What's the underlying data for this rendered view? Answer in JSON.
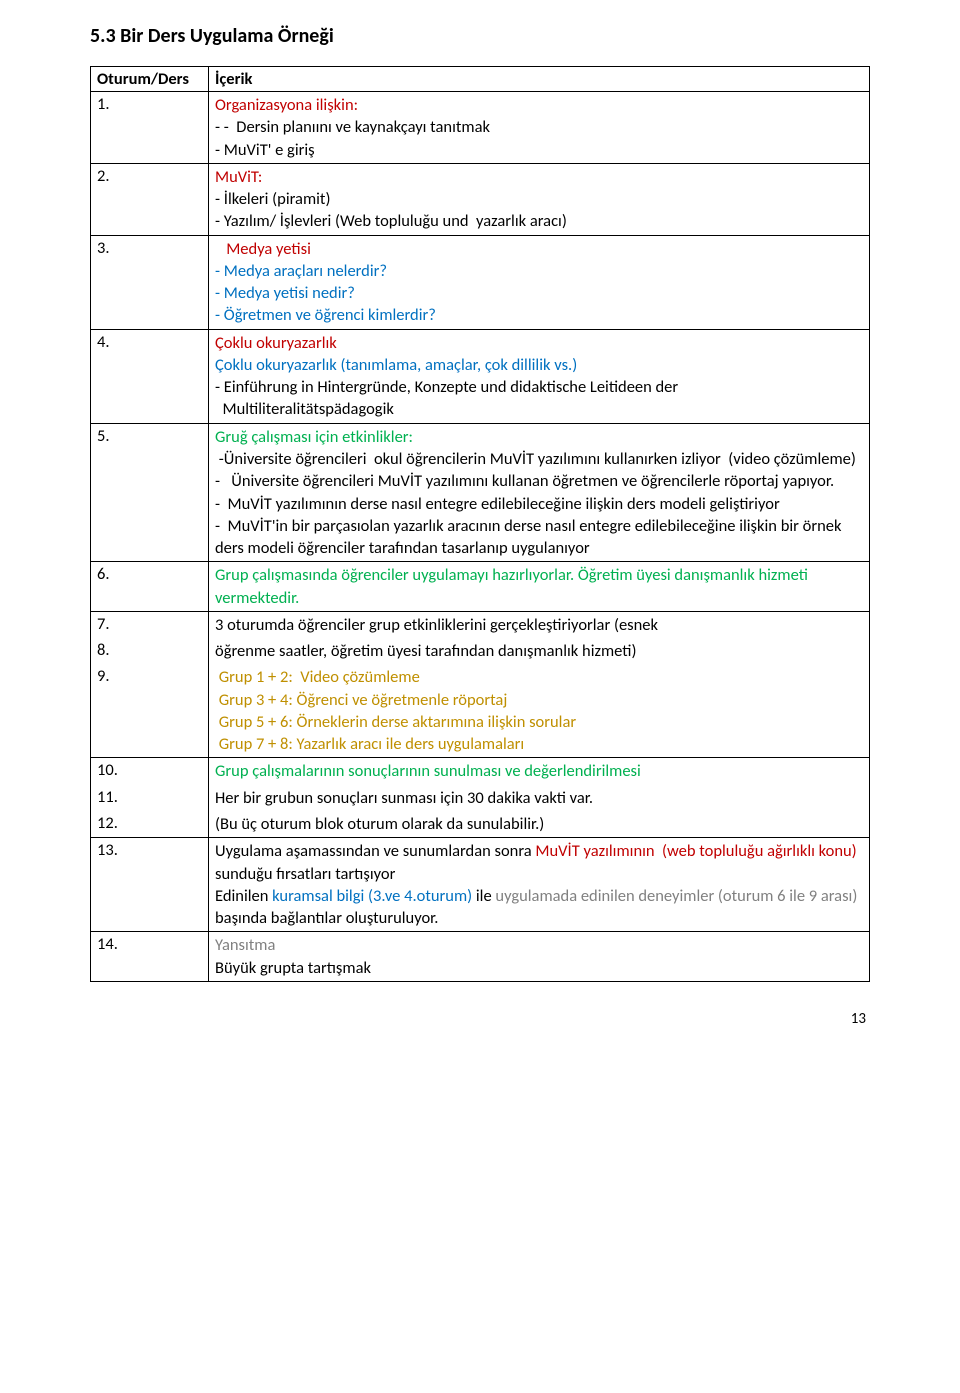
{
  "section_title": "5.3 Bir Ders Uygulama Örneği",
  "table": {
    "headers": [
      "Oturum/Ders",
      "İçerik"
    ],
    "rows": [
      {
        "num": "1.",
        "segments": [
          {
            "text": "Organizasyona ilişkin:",
            "color": "c-red"
          },
          {
            "text": "\n- -  Dersin planıını ve kaynakçayı tanıtmak",
            "color": ""
          },
          {
            "text": "\n- MuViT' e giriş",
            "color": ""
          }
        ]
      },
      {
        "num": "2.",
        "segments": [
          {
            "text": "MuViT:",
            "color": "c-red"
          },
          {
            "text": "\n- İlkeleri (piramit)",
            "color": ""
          },
          {
            "text": "\n- Yazılım/ İşlevleri (Web topluluğu und  yazarlık aracı)",
            "color": ""
          }
        ]
      },
      {
        "num": "3.",
        "segments": [
          {
            "text": "   Medya yetisi",
            "color": "c-red"
          },
          {
            "text": "\n- Medya araçları nelerdir?",
            "color": "c-blue"
          },
          {
            "text": "\n- Medya yetisi nedir?",
            "color": "c-blue"
          },
          {
            "text": "\n- Öğretmen ve öğrenci kimlerdir?",
            "color": "c-blue"
          }
        ]
      },
      {
        "num": "4.",
        "segments": [
          {
            "text": "Çoklu okuryazarlık",
            "color": "c-red"
          },
          {
            "text": "\nÇoklu okuryazarlık (tanımlama, amaçlar, çok dillilik vs.)",
            "color": "c-blue"
          },
          {
            "text": "\n- Einführung in Hintergründe, Konzepte und didaktische Leitideen der\n  Multiliteralitätspädagogik",
            "color": ""
          }
        ]
      },
      {
        "num": "5.",
        "segments": [
          {
            "text": "Gruğ çalışması için etkinlikler:",
            "color": "c-green"
          },
          {
            "text": "\n -Üniversite öğrencileri  okul öğrencilerin MuVİT yazılımını kullanırken izliyor  (video çözümleme)",
            "color": ""
          },
          {
            "text": "\n-   Üniversite öğrencileri MuVİT yazılımını kullanan öğretmen ve öğrencilerle röportaj yapıyor.",
            "color": ""
          },
          {
            "text": "\n-  MuVİT yazılımının derse nasıl entegre edilebileceğine ilişkin ders modeli geliştiriyor",
            "color": ""
          },
          {
            "text": "\n-  MuVİT'in bir parçasıolan yazarlık aracının derse nasıl entegre edilebileceğine ilişkin bir örnek ders modeli öğrenciler tarafından tasarlanıp uygulanıyor",
            "color": ""
          }
        ]
      },
      {
        "num": "6.",
        "segments": [
          {
            "text": "Grup çalışmasında öğrenciler uygulamayı hazırlıyorlar. Öğretim üyesi danışmanlık hizmeti vermektedir.",
            "color": "c-green"
          }
        ]
      },
      {
        "num": "7.",
        "merge": "top",
        "segments": [
          {
            "text": "3 oturumda öğrenciler grup etkinliklerini gerçekleştiriyorlar (esnek ",
            "color": ""
          }
        ]
      },
      {
        "num": "8.",
        "merge": "mid",
        "segments": [
          {
            "text": "öğrenme saatler, öğretim üyesi tarafından danışmanlık hizmeti)",
            "color": ""
          }
        ]
      },
      {
        "num": "9.",
        "merge": "bot",
        "segments": [
          {
            "text": " Grup 1 + 2:  Video çözümleme",
            "color": "c-gold"
          },
          {
            "text": "\n Grup 3 + 4: Öğrenci ve öğretmenle röportaj",
            "color": "c-gold"
          },
          {
            "text": "\n Grup 5 + 6: Örneklerin derse aktarımına ilişkin sorular",
            "color": "c-gold"
          },
          {
            "text": "\n Grup 7 + 8: Yazarlık aracı ile ders uygulamaları",
            "color": "c-gold"
          }
        ]
      },
      {
        "num": "10.",
        "merge": "top",
        "segments": [
          {
            "text": "Grup çalışmalarının sonuçlarının sunulması ve değerlendirilmesi",
            "color": "c-green"
          }
        ]
      },
      {
        "num": "11.",
        "merge": "mid",
        "segments": [
          {
            "text": "Her bir grubun sonuçları sunması için 30 dakika vakti var.",
            "color": ""
          }
        ]
      },
      {
        "num": "12.",
        "merge": "bot",
        "segments": [
          {
            "text": "(Bu üç oturum blok oturum olarak da sunulabilir.)",
            "color": ""
          }
        ]
      },
      {
        "num": "13.",
        "segments": [
          {
            "text": "Uygulama aşamassından ve sunumlardan sonra ",
            "color": ""
          },
          {
            "text": "MuVİT yazılımının  (web topluluğu ağırlıklı konu)",
            "color": "c-red"
          },
          {
            "text": " sunduğu fırsatları tartışıyor",
            "color": ""
          },
          {
            "text": "\nEdinilen ",
            "color": ""
          },
          {
            "text": "kuramsal bilgi (3.ve 4.oturum)",
            "color": "c-blue"
          },
          {
            "text": " ile ",
            "color": ""
          },
          {
            "text": "uygulamada edinilen deneyimler (oturum 6 ile 9 arası)",
            "color": "c-gray"
          },
          {
            "text": " başında bağlantılar oluşturuluyor.",
            "color": ""
          }
        ]
      },
      {
        "num": "14.",
        "segments": [
          {
            "text": "Yansıtma",
            "color": "c-gray"
          },
          {
            "text": "\nBüyük grupta tartışmak",
            "color": ""
          }
        ]
      }
    ]
  },
  "page_number": "13"
}
